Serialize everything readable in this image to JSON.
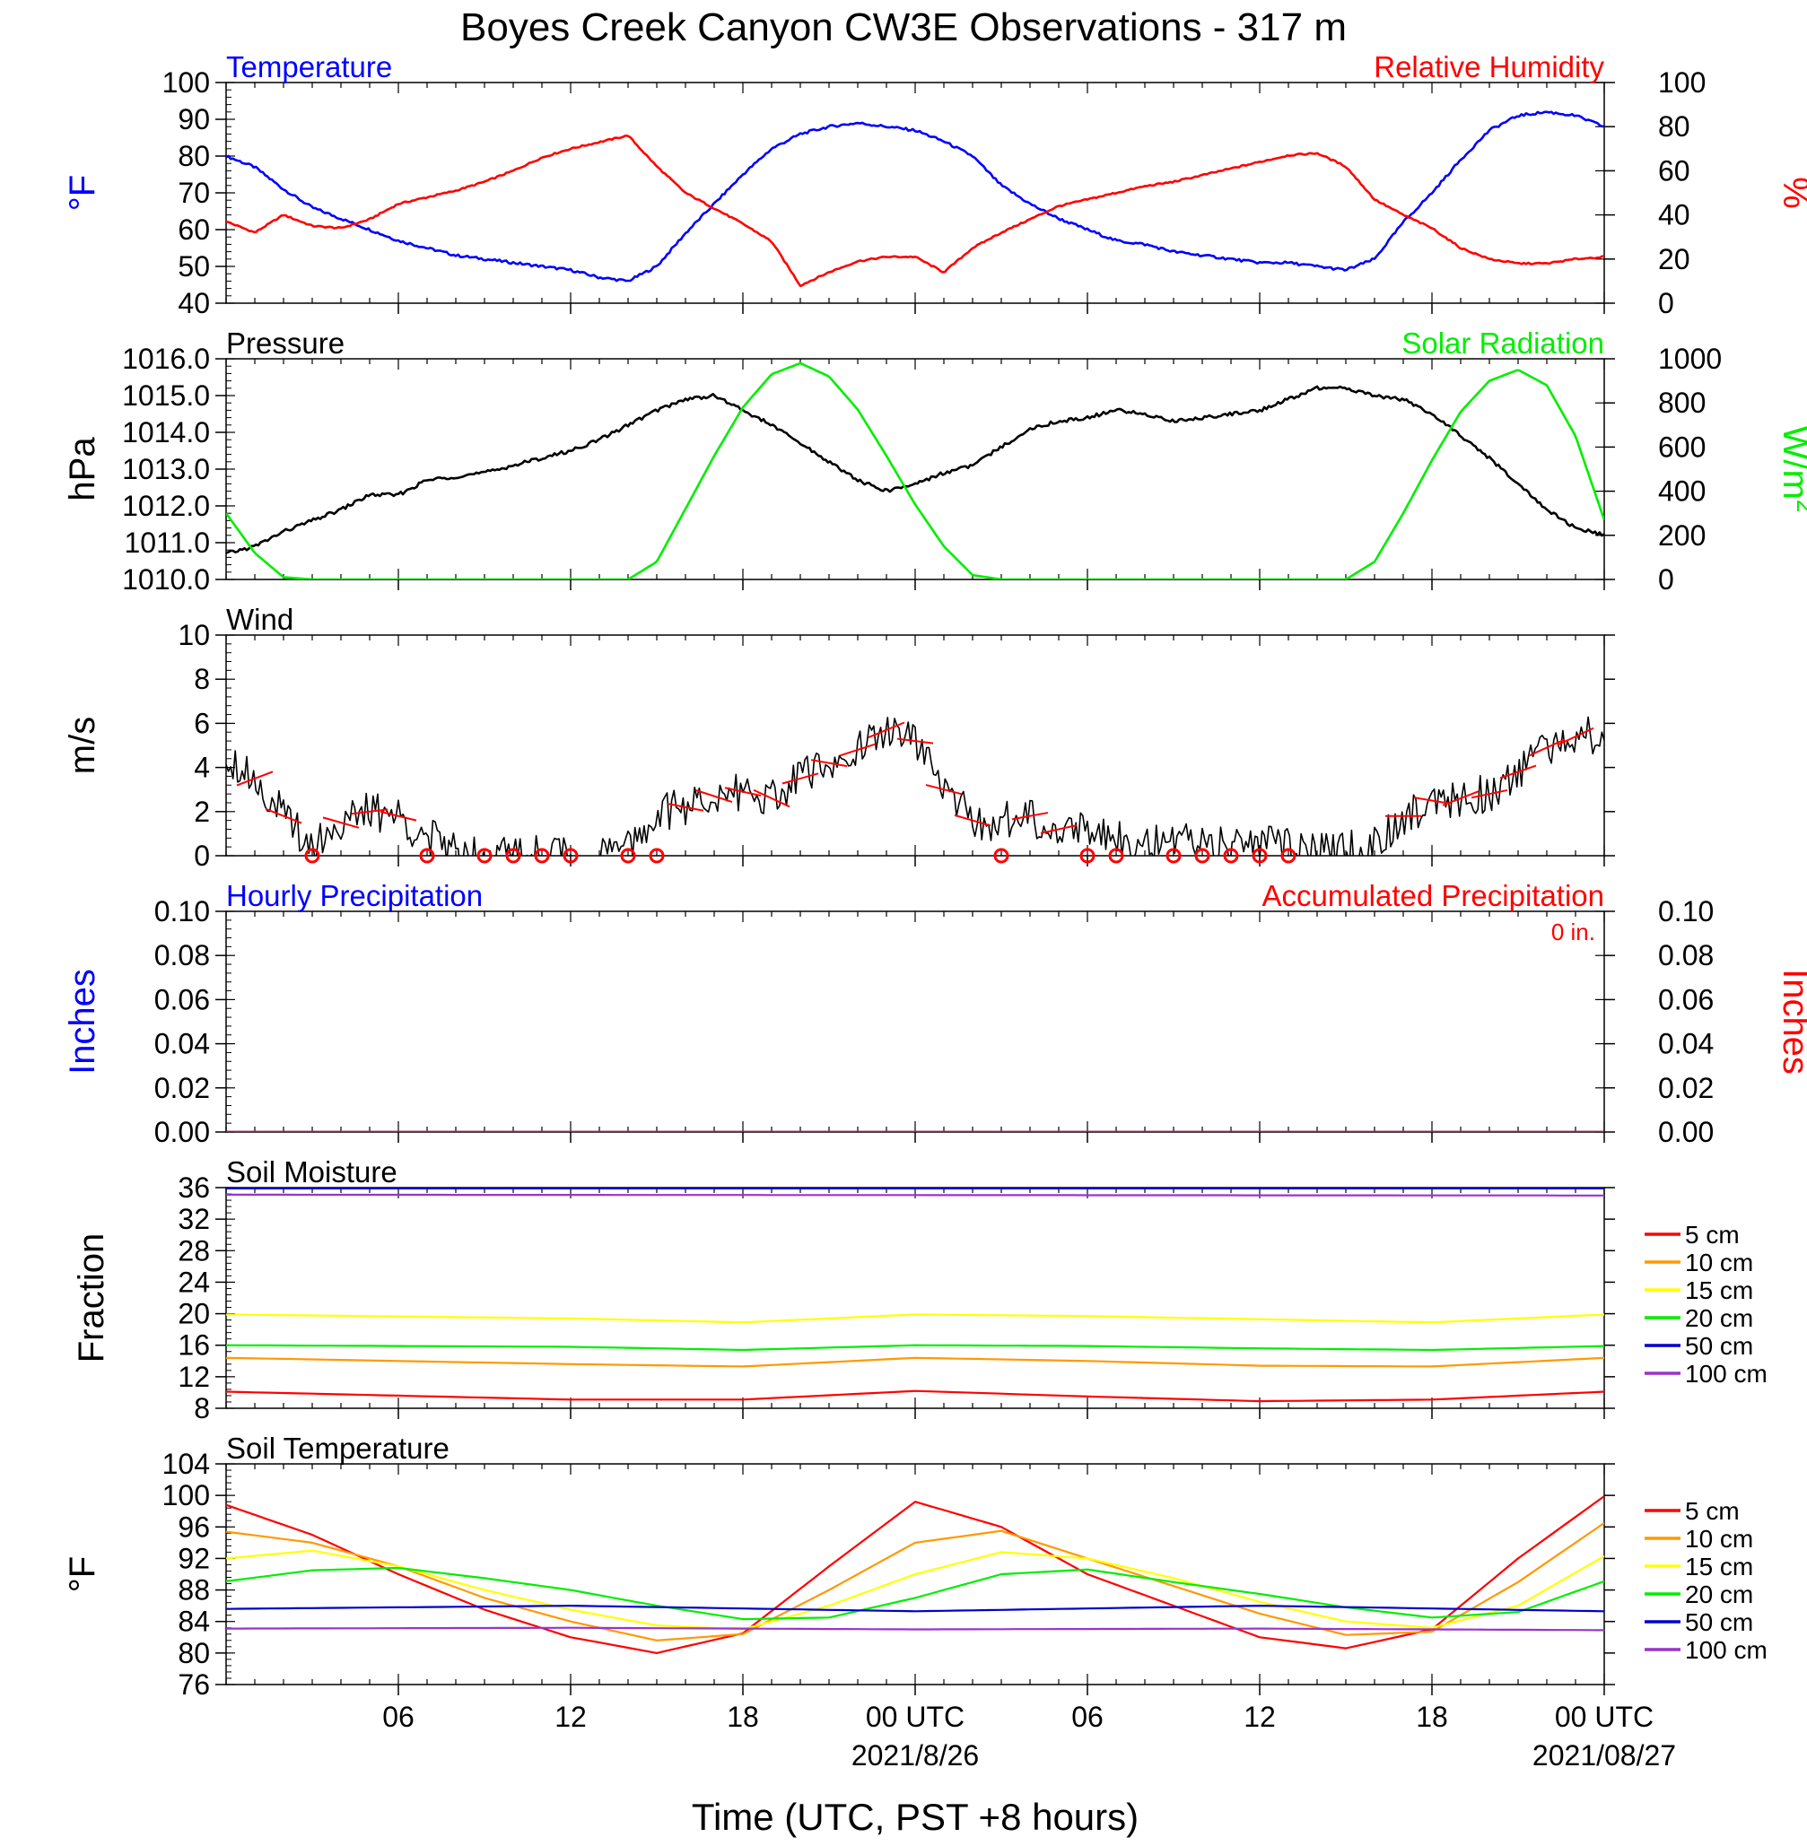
{
  "title": "Boyes Creek Canyon CW3E Observations - 317 m",
  "xlabel": "Time (UTC, PST +8 hours)",
  "xticks": [
    "06",
    "12",
    "18",
    "00 UTC",
    "06",
    "12",
    "18",
    "00 UTC"
  ],
  "xdates": [
    "2021/8/26",
    "2021/08/27"
  ],
  "colors": {
    "blue": "#0000ff",
    "red": "#ff0000",
    "green": "#00ee00",
    "black": "#000000",
    "orange": "#ff9900",
    "yellow": "#ffff00",
    "navy": "#0000cc",
    "purple": "#9933cc"
  },
  "chart_data": [
    {
      "type": "line",
      "left_title": "Temperature",
      "right_title": "Relative Humidity",
      "ylabel_left": "°F",
      "ylabel_right": "%",
      "ylim_left": [
        40,
        100
      ],
      "yticks_left": [
        "100",
        "90",
        "80",
        "70",
        "60",
        "50",
        "40"
      ],
      "ylim_right": [
        0,
        100
      ],
      "yticks_right": [
        "100",
        "80",
        "60",
        "40",
        "20",
        "0"
      ],
      "series": [
        {
          "name": "Temperature",
          "axis": "left",
          "color": "#0000ff",
          "x": [
            0,
            1,
            2,
            3,
            4,
            5,
            6,
            7,
            8,
            9,
            10,
            11,
            12,
            13,
            14,
            15,
            16,
            17,
            18,
            19,
            20,
            21,
            22,
            23,
            24,
            25,
            26,
            27,
            28,
            29,
            30,
            31,
            32,
            33,
            34,
            35,
            36,
            37,
            38,
            39,
            40,
            41,
            42,
            43,
            44,
            45,
            46,
            47,
            48
          ],
          "y": [
            80,
            77,
            71,
            66,
            63,
            60,
            57,
            55,
            53,
            52,
            51,
            50,
            49,
            47,
            46,
            50,
            59,
            67,
            75,
            82,
            86,
            88,
            89,
            88,
            87,
            84,
            80,
            72,
            67,
            63,
            60,
            57,
            56,
            54,
            53,
            52,
            51,
            51,
            50,
            49,
            52,
            62,
            70,
            79,
            87,
            91,
            92,
            91,
            88
          ]
        },
        {
          "name": "Relative Humidity",
          "axis": "right",
          "color": "#ff0000",
          "x": [
            0,
            1,
            2,
            3,
            4,
            5,
            6,
            7,
            8,
            9,
            10,
            11,
            12,
            13,
            14,
            15,
            16,
            17,
            18,
            19,
            20,
            21,
            22,
            23,
            24,
            25,
            26,
            27,
            28,
            29,
            30,
            31,
            32,
            33,
            34,
            35,
            36,
            37,
            38,
            39,
            40,
            41,
            42,
            43,
            44,
            45,
            46,
            47,
            48
          ],
          "y": [
            37,
            32,
            40,
            35,
            34,
            38,
            45,
            48,
            51,
            55,
            60,
            66,
            70,
            73,
            76,
            62,
            50,
            43,
            36,
            28,
            8,
            14,
            19,
            21,
            21,
            14,
            25,
            32,
            38,
            44,
            47,
            50,
            53,
            55,
            58,
            61,
            64,
            67,
            68,
            62,
            47,
            40,
            34,
            25,
            20,
            18,
            18,
            20,
            21
          ]
        }
      ]
    },
    {
      "type": "line",
      "left_title": "Pressure",
      "right_title": "Solar Radiation",
      "ylabel_left": "hPa",
      "ylabel_right": "W/m",
      "ylabel_right_sup": "2",
      "ylim_left": [
        1010,
        1016
      ],
      "yticks_left": [
        "1016.0",
        "1015.0",
        "1014.0",
        "1013.0",
        "1012.0",
        "1011.0",
        "1010.0"
      ],
      "ylim_right": [
        0,
        1000
      ],
      "yticks_right": [
        "1000",
        "800",
        "600",
        "400",
        "200",
        "0"
      ],
      "series": [
        {
          "name": "Pressure",
          "axis": "left",
          "color": "#000000",
          "x": [
            0,
            1,
            2,
            3,
            4,
            5,
            6,
            7,
            8,
            9,
            10,
            11,
            12,
            13,
            14,
            15,
            16,
            17,
            18,
            19,
            20,
            21,
            22,
            23,
            24,
            25,
            26,
            27,
            28,
            29,
            30,
            31,
            32,
            33,
            34,
            35,
            36,
            37,
            38,
            39,
            40,
            41,
            42,
            43,
            44,
            45,
            46,
            47,
            48
          ],
          "y": [
            1010.7,
            1010.9,
            1011.3,
            1011.6,
            1011.9,
            1012.3,
            1012.3,
            1012.7,
            1012.8,
            1012.9,
            1013.1,
            1013.3,
            1013.5,
            1013.8,
            1014.2,
            1014.6,
            1014.9,
            1015.0,
            1014.6,
            1014.2,
            1013.7,
            1013.2,
            1012.7,
            1012.4,
            1012.6,
            1012.9,
            1013.1,
            1013.6,
            1014.1,
            1014.3,
            1014.4,
            1014.6,
            1014.5,
            1014.3,
            1014.4,
            1014.5,
            1014.6,
            1014.9,
            1015.2,
            1015.2,
            1015.0,
            1014.9,
            1014.5,
            1013.9,
            1013.3,
            1012.6,
            1011.9,
            1011.4,
            1011.2
          ]
        },
        {
          "name": "Solar Radiation",
          "axis": "right",
          "color": "#00ee00",
          "x": [
            0,
            1,
            2,
            3,
            4,
            5,
            6,
            7,
            8,
            9,
            10,
            11,
            12,
            13,
            14,
            15,
            16,
            17,
            18,
            19,
            20,
            21,
            22,
            23,
            24,
            25,
            26,
            27,
            28,
            29,
            30,
            31,
            32,
            33,
            34,
            35,
            36,
            37,
            38,
            39,
            40,
            41,
            42,
            43,
            44,
            45,
            46,
            47,
            48
          ],
          "y": [
            300,
            120,
            10,
            0,
            0,
            0,
            0,
            0,
            0,
            0,
            0,
            0,
            0,
            0,
            0,
            80,
            320,
            560,
            780,
            930,
            980,
            920,
            770,
            560,
            340,
            150,
            20,
            0,
            0,
            0,
            0,
            0,
            0,
            0,
            0,
            0,
            0,
            0,
            0,
            0,
            80,
            300,
            540,
            760,
            900,
            950,
            880,
            650,
            270
          ]
        }
      ]
    },
    {
      "type": "line",
      "left_title": "Wind",
      "ylabel_left": "m/s",
      "ylim_left": [
        0,
        10
      ],
      "yticks_left": [
        "10",
        "8",
        "6",
        "4",
        "2",
        "0"
      ],
      "series": [
        {
          "name": "Wind",
          "axis": "left",
          "color": "#000000",
          "x": [
            0,
            1,
            2,
            3,
            4,
            5,
            6,
            7,
            8,
            9,
            10,
            11,
            12,
            13,
            14,
            15,
            16,
            17,
            18,
            19,
            20,
            21,
            22,
            23,
            24,
            25,
            26,
            27,
            28,
            29,
            30,
            31,
            32,
            33,
            34,
            35,
            36,
            37,
            38,
            39,
            40,
            41,
            42,
            43,
            44,
            45,
            46,
            47,
            48
          ],
          "y": [
            4.6,
            3.5,
            1.8,
            0.5,
            1.5,
            2.0,
            1.8,
            0.8,
            0.3,
            0.2,
            0.1,
            0.2,
            0.1,
            0.1,
            0.3,
            1.9,
            2.2,
            2.7,
            2.9,
            2.6,
            3.5,
            4.2,
            4.8,
            5.7,
            5.2,
            3.0,
            1.6,
            1.5,
            1.8,
            1.2,
            1.3,
            0.9,
            0.6,
            0.4,
            0.8,
            0.3,
            0.5,
            0.4,
            0.2,
            0.2,
            0.6,
            1.8,
            2.5,
            2.6,
            2.8,
            3.8,
            4.9,
            5.4,
            5.6
          ]
        }
      ],
      "calm_hours": [
        2,
        6,
        8,
        9,
        10,
        11,
        13,
        14,
        26,
        29,
        30,
        32,
        33,
        34,
        35,
        36
      ]
    },
    {
      "type": "line",
      "left_title": "Hourly Precipitation",
      "right_title": "Accumulated Precipitation",
      "total_label": "0 in.",
      "ylabel_left": "Inches",
      "ylabel_right": "Inches",
      "ylim_left": [
        0,
        0.1
      ],
      "yticks_left": [
        "0.10",
        "0.08",
        "0.06",
        "0.04",
        "0.02",
        "0.00"
      ],
      "ylim_right": [
        0,
        0.1
      ],
      "yticks_right": [
        "0.10",
        "0.08",
        "0.06",
        "0.04",
        "0.02",
        "0.00"
      ],
      "series": [
        {
          "name": "Hourly Precipitation",
          "axis": "left",
          "color": "#0000ff",
          "x": [
            0,
            48
          ],
          "y": [
            0,
            0
          ]
        },
        {
          "name": "Accumulated Precipitation",
          "axis": "left",
          "color": "#ff0000",
          "x": [
            0,
            48
          ],
          "y": [
            0,
            0
          ]
        }
      ]
    },
    {
      "type": "line",
      "left_title": "Soil Moisture",
      "ylabel_left": "Fraction",
      "ylim_left": [
        8,
        36
      ],
      "yticks_left": [
        "36",
        "32",
        "28",
        "24",
        "20",
        "16",
        "12",
        "8"
      ],
      "legend": [
        "5 cm",
        "10 cm",
        "15 cm",
        "20 cm",
        "50 cm",
        "100 cm"
      ],
      "series": [
        {
          "name": "5 cm",
          "color": "#ff0000",
          "x": [
            0,
            12,
            18,
            24,
            30,
            36,
            42,
            48
          ],
          "y": [
            10.1,
            9.1,
            9.1,
            10.2,
            9.5,
            8.9,
            9.1,
            10.1
          ]
        },
        {
          "name": "10 cm",
          "color": "#ff9900",
          "x": [
            0,
            12,
            18,
            24,
            30,
            36,
            42,
            48
          ],
          "y": [
            14.4,
            13.6,
            13.3,
            14.4,
            14.0,
            13.4,
            13.3,
            14.4
          ]
        },
        {
          "name": "15 cm",
          "color": "#ffff00",
          "x": [
            0,
            12,
            18,
            24,
            30,
            36,
            42,
            48
          ],
          "y": [
            19.9,
            19.4,
            18.9,
            19.9,
            19.7,
            19.3,
            18.9,
            19.9
          ]
        },
        {
          "name": "20 cm",
          "color": "#00ee00",
          "x": [
            0,
            12,
            18,
            24,
            30,
            36,
            42,
            48
          ],
          "y": [
            16.0,
            15.8,
            15.4,
            16.0,
            15.9,
            15.6,
            15.4,
            15.9
          ]
        },
        {
          "name": "50 cm",
          "color": "#0000cc",
          "x": [
            0,
            48
          ],
          "y": [
            35.9,
            35.9
          ]
        },
        {
          "name": "100 cm",
          "color": "#9933cc",
          "x": [
            0,
            48
          ],
          "y": [
            35.1,
            35.0
          ]
        }
      ]
    },
    {
      "type": "line",
      "left_title": "Soil Temperature",
      "ylabel_left": "°F",
      "ylim_left": [
        76,
        104
      ],
      "yticks_left": [
        "104",
        "100",
        "96",
        "92",
        "88",
        "84",
        "80",
        "76"
      ],
      "legend": [
        "5 cm",
        "10 cm",
        "15 cm",
        "20 cm",
        "50 cm",
        "100 cm"
      ],
      "series": [
        {
          "name": "5 cm",
          "color": "#ff0000",
          "x": [
            0,
            3,
            6,
            9,
            12,
            15,
            18,
            21,
            24,
            27,
            30,
            33,
            36,
            39,
            42,
            45,
            48
          ],
          "y": [
            98.8,
            95,
            90,
            85.5,
            82,
            80,
            82.5,
            91,
            99.2,
            96,
            90,
            86,
            82,
            80.6,
            83,
            92,
            99.9
          ]
        },
        {
          "name": "10 cm",
          "color": "#ff9900",
          "x": [
            0,
            3,
            6,
            9,
            12,
            15,
            18,
            21,
            24,
            27,
            30,
            33,
            36,
            39,
            42,
            45,
            48
          ],
          "y": [
            95.4,
            94,
            91,
            87,
            84,
            81.6,
            82.4,
            88,
            94,
            95.5,
            92,
            88.5,
            85,
            82.3,
            82.7,
            89,
            96.5
          ]
        },
        {
          "name": "15 cm",
          "color": "#ffff00",
          "x": [
            0,
            3,
            6,
            9,
            12,
            15,
            18,
            21,
            24,
            27,
            30,
            33,
            36,
            39,
            42,
            45,
            48
          ],
          "y": [
            92,
            93,
            91,
            88,
            85.5,
            83.5,
            83,
            86,
            90,
            92.8,
            92,
            89.5,
            86.5,
            84,
            83.2,
            86,
            92.3
          ]
        },
        {
          "name": "20 cm",
          "color": "#00ee00",
          "x": [
            0,
            3,
            6,
            9,
            12,
            15,
            18,
            21,
            24,
            27,
            30,
            33,
            36,
            39,
            42,
            45,
            48
          ],
          "y": [
            89.1,
            90.5,
            90.8,
            89.5,
            88,
            86,
            84.3,
            84.5,
            87,
            90,
            90.6,
            89,
            87.5,
            85.8,
            84.5,
            85.2,
            89.1
          ]
        },
        {
          "name": "50 cm",
          "color": "#0000cc",
          "x": [
            0,
            12,
            24,
            36,
            48
          ],
          "y": [
            85.6,
            86,
            85.3,
            86,
            85.3
          ]
        },
        {
          "name": "100 cm",
          "color": "#9933cc",
          "x": [
            0,
            12,
            24,
            36,
            48
          ],
          "y": [
            83.1,
            83.2,
            83,
            83.1,
            82.9
          ]
        }
      ]
    }
  ]
}
